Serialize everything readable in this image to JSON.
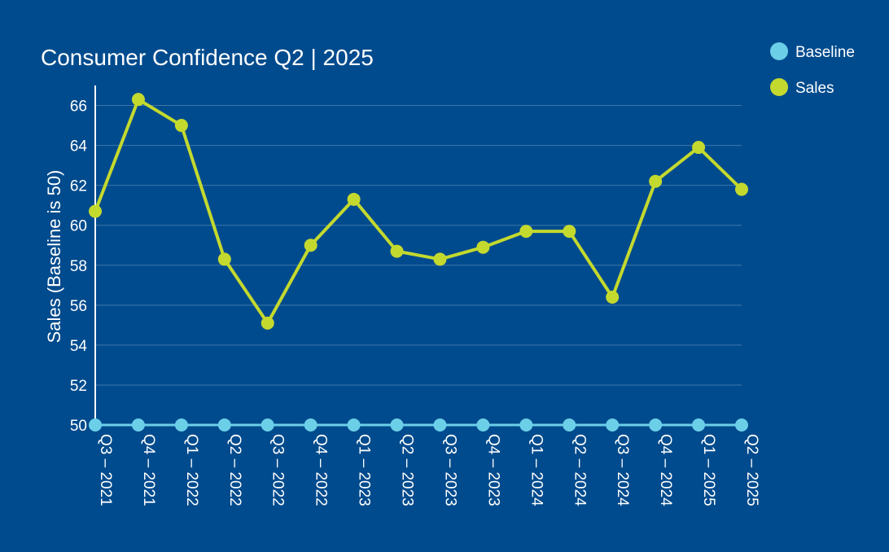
{
  "chart_data": {
    "type": "line",
    "title": "Consumer Confidence Q2 | 2025",
    "ylabel": "Sales (Baseline is 50)",
    "xlabel": "",
    "ylim": [
      50,
      67
    ],
    "yticks": [
      50,
      52,
      54,
      56,
      58,
      60,
      62,
      64,
      66
    ],
    "grid": true,
    "legend_position": "top-right",
    "categories": [
      "Q3 – 2021",
      "Q4 – 2021",
      "Q1 – 2022",
      "Q2 – 2022",
      "Q3 – 2022",
      "Q4 – 2022",
      "Q1 – 2023",
      "Q2 – 2023",
      "Q3 – 2023",
      "Q4 – 2023",
      "Q1 – 2024",
      "Q2 – 2024",
      "Q3 – 2024",
      "Q4 – 2024",
      "Q1 – 2025",
      "Q2 – 2025"
    ],
    "series": [
      {
        "name": "Baseline",
        "color": "#6ccfe8",
        "values": [
          50,
          50,
          50,
          50,
          50,
          50,
          50,
          50,
          50,
          50,
          50,
          50,
          50,
          50,
          50,
          50
        ]
      },
      {
        "name": "Sales",
        "color": "#c4d92e",
        "values": [
          60.7,
          66.3,
          65.0,
          58.3,
          55.1,
          59.0,
          61.3,
          58.7,
          58.3,
          58.9,
          59.7,
          59.7,
          56.4,
          62.2,
          63.9,
          61.8
        ]
      }
    ]
  }
}
